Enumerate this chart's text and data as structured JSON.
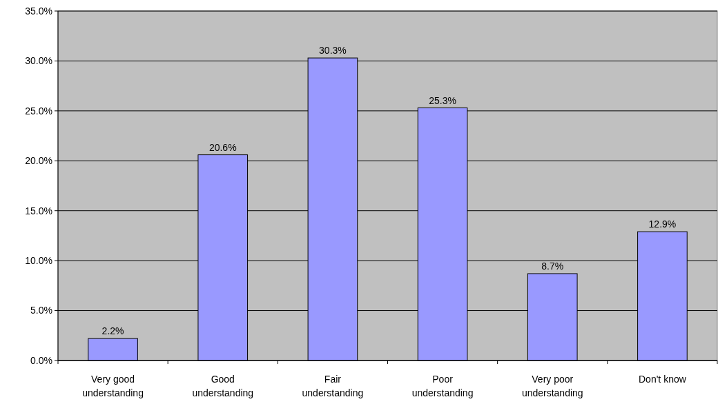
{
  "chart_data": {
    "type": "bar",
    "categories": [
      "Very good understanding",
      "Good understanding",
      "Fair understanding",
      "Poor understanding",
      "Very poor understanding",
      "Don't know"
    ],
    "values": [
      2.2,
      20.6,
      30.3,
      25.3,
      8.7,
      12.9
    ],
    "value_labels": [
      "2.2%",
      "20.6%",
      "30.3%",
      "25.3%",
      "8.7%",
      "12.9%"
    ],
    "color": "#9999ff",
    "ylim": [
      0,
      35
    ],
    "yticks": [
      {
        "value": 0,
        "label": "0.0%"
      },
      {
        "value": 5,
        "label": "5.0%"
      },
      {
        "value": 10,
        "label": "10.0%"
      },
      {
        "value": 15,
        "label": "15.0%"
      },
      {
        "value": 20,
        "label": "20.0%"
      },
      {
        "value": 25,
        "label": "25.0%"
      },
      {
        "value": 30,
        "label": "30.0%"
      },
      {
        "value": 35,
        "label": "35.0%"
      }
    ],
    "grid": "y"
  }
}
